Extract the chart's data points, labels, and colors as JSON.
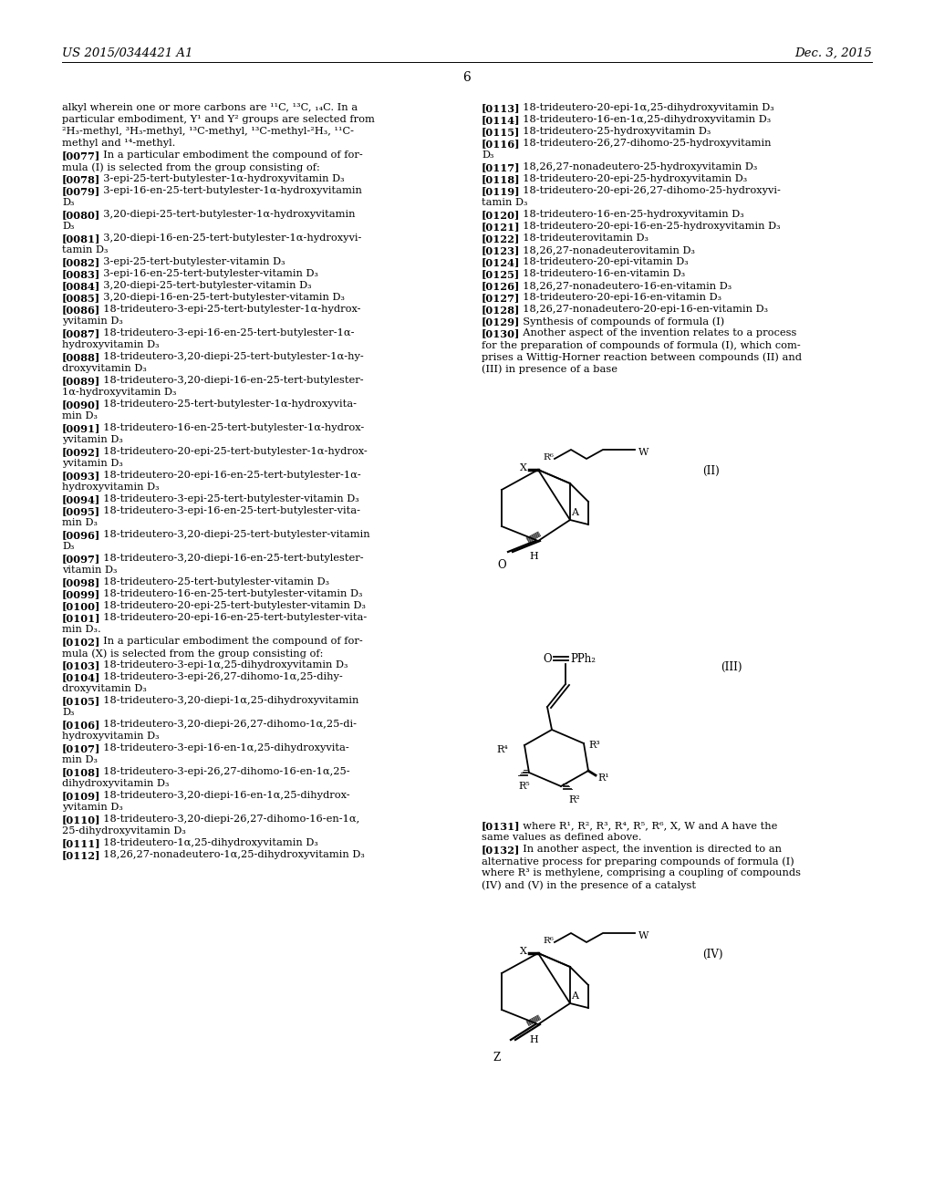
{
  "page_header_left": "US 2015/0344421 A1",
  "page_header_right": "Dec. 3, 2015",
  "page_number": "6",
  "background_color": "#ffffff"
}
